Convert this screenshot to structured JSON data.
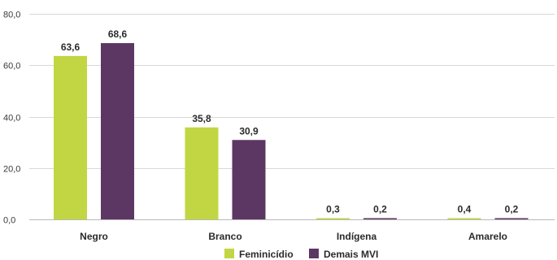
{
  "chart_data": {
    "type": "bar",
    "categories": [
      "Negro",
      "Branco",
      "Indígena",
      "Amarelo"
    ],
    "series": [
      {
        "name": "Feminicídio",
        "values": [
          63.6,
          35.8,
          0.3,
          0.4
        ],
        "labels": [
          "63,6",
          "35,8",
          "0,3",
          "0,4"
        ],
        "color": "#c2d643"
      },
      {
        "name": "Demais MVI",
        "values": [
          68.6,
          30.9,
          0.2,
          0.2
        ],
        "labels": [
          "68,6",
          "30,9",
          "0,2",
          "0,2"
        ],
        "color": "#5d3763"
      }
    ],
    "yticks": [
      0,
      20,
      40,
      60,
      80
    ],
    "ytick_labels": [
      "0,0",
      "20,0",
      "40,0",
      "60,0",
      "80,0"
    ],
    "ylim": [
      0,
      80
    ],
    "grid": true,
    "legend_position": "bottom-center"
  }
}
